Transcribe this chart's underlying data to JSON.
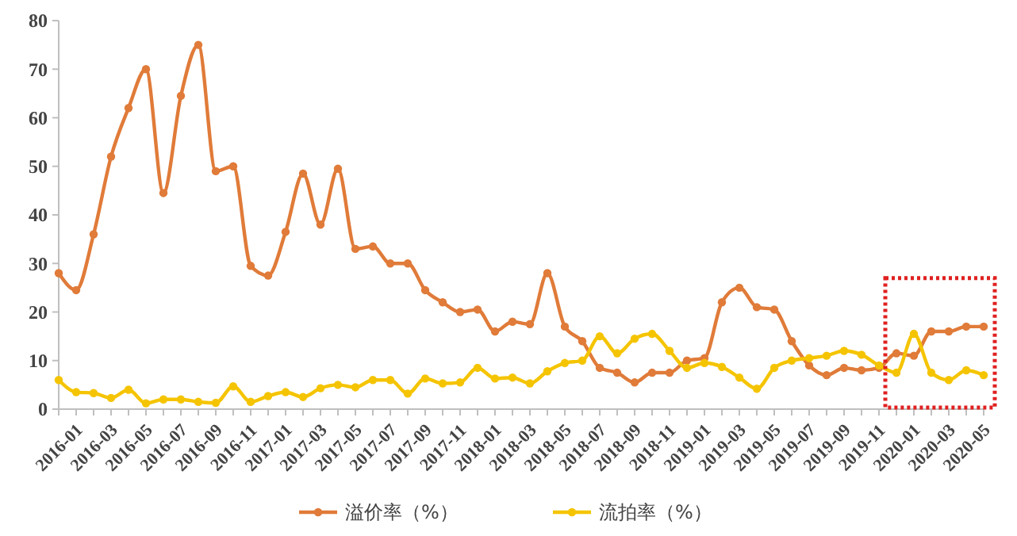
{
  "chart_data": {
    "type": "line",
    "categories": [
      "2016-01",
      null,
      "2016-03",
      null,
      "2016-05",
      null,
      "2016-07",
      null,
      "2016-09",
      null,
      "2016-11",
      null,
      "2017-01",
      null,
      "2017-03",
      null,
      "2017-05",
      null,
      "2017-07",
      null,
      "2017-09",
      null,
      "2017-11",
      null,
      "2018-01",
      null,
      "2018-03",
      null,
      "2018-05",
      null,
      "2018-07",
      null,
      "2018-09",
      null,
      "2018-11",
      null,
      "2019-01",
      null,
      "2019-03",
      null,
      "2019-05",
      null,
      "2019-07",
      null,
      "2019-09",
      null,
      "2019-11",
      null,
      "2020-01",
      null,
      "2020-03",
      null,
      "2020-05",
      null
    ],
    "series": [
      {
        "name": "溢价率（%）",
        "color": "#e07b39",
        "values": [
          28,
          24.5,
          36,
          52,
          62,
          70,
          44.5,
          64.5,
          75,
          49,
          50,
          29.5,
          27.5,
          36.5,
          48.5,
          38,
          49.5,
          33,
          33.5,
          30,
          30,
          24.5,
          22,
          20,
          20.5,
          16,
          18,
          17.5,
          28,
          17,
          14,
          8.5,
          7.5,
          5.5,
          7.5,
          7.5,
          10,
          10.5,
          22,
          25,
          21,
          20.5,
          14,
          9,
          7,
          8.5,
          8,
          8.5,
          11.5,
          11,
          16,
          16,
          17,
          17
        ]
      },
      {
        "name": "流拍率（%）",
        "color": "#f5c400",
        "values": [
          6,
          3.5,
          3.3,
          2.3,
          4,
          1.2,
          2,
          2,
          1.5,
          1.3,
          4.7,
          1.5,
          2.7,
          3.5,
          2.5,
          4.3,
          5,
          4.5,
          6,
          6,
          3.2,
          6.3,
          5.3,
          5.5,
          8.5,
          6.3,
          6.5,
          5.3,
          7.8,
          9.5,
          10,
          15,
          11.5,
          14.5,
          15.5,
          12,
          8.5,
          9.5,
          8.7,
          6.5,
          4.2,
          8.5,
          10,
          10.5,
          11,
          12,
          11.2,
          9,
          7.5,
          15.5,
          7.5,
          6,
          8,
          7
        ]
      }
    ],
    "ylim": [
      0,
      80
    ],
    "yticks": [
      0,
      10,
      20,
      30,
      40,
      50,
      60,
      70,
      80
    ],
    "grid": false,
    "legend": "bottom",
    "marker": "circle",
    "line_style": "solid"
  }
}
